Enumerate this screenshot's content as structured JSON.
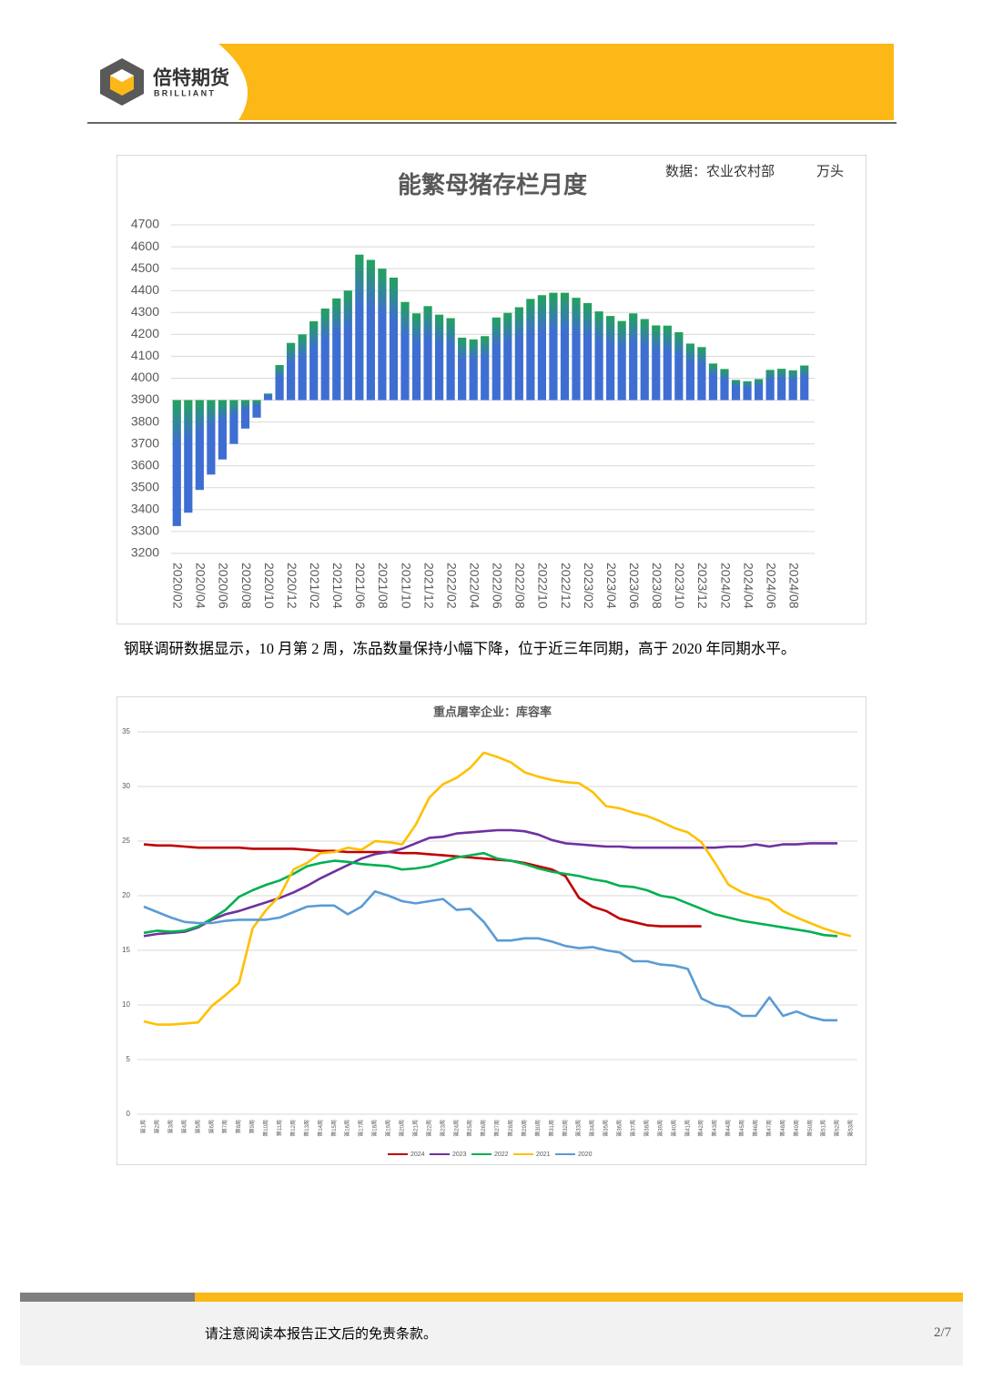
{
  "header": {
    "logo_cn": "倍特期货",
    "logo_en": "BRILLIANT"
  },
  "chart_data": [
    {
      "type": "bar",
      "title": "能繁母猪存栏月度",
      "source": "数据：农业农村部",
      "unit": "万头",
      "categories": [
        "2020/02",
        null,
        "2020/04",
        null,
        "2020/06",
        null,
        "2020/08",
        null,
        "2020/10",
        null,
        "2020/12",
        null,
        "2021/02",
        null,
        "2021/04",
        null,
        "2021/06",
        null,
        "2021/08",
        null,
        "2021/10",
        null,
        "2021/12",
        null,
        "2022/02",
        null,
        "2022/04",
        null,
        "2022/06",
        null,
        "2022/08",
        null,
        "2022/10",
        null,
        "2022/12",
        null,
        "2023/02",
        null,
        "2023/04",
        null,
        "2023/06",
        null,
        "2023/08",
        null,
        "2023/10",
        null,
        "2023/12",
        null,
        "2024/02",
        null,
        "2024/04",
        null,
        "2024/06",
        null,
        "2024/08",
        null
      ],
      "values": [
        3325,
        3386,
        3490,
        3560,
        3629,
        3700,
        3770,
        3820,
        3930,
        4060,
        4161,
        4200,
        4260,
        4318,
        4364,
        4400,
        4564,
        4540,
        4500,
        4459,
        4348,
        4296,
        4329,
        4290,
        4274,
        4185,
        4177,
        4192,
        4277,
        4298,
        4324,
        4362,
        4379,
        4390,
        4390,
        4367,
        4343,
        4305,
        4284,
        4261,
        4296,
        4270,
        4241,
        4240,
        4210,
        4158,
        4142,
        4067,
        4042,
        3992,
        3986,
        3996,
        4038,
        4043,
        4036,
        4058
      ],
      "gradient": [
        "#22a35a",
        "#3f6ed2"
      ],
      "x_axis_at": 3900,
      "ylim": [
        3200,
        4700
      ],
      "yticks": [
        3200,
        3300,
        3400,
        3500,
        3600,
        3700,
        3800,
        3900,
        4000,
        4100,
        4200,
        4300,
        4400,
        4500,
        4600,
        4700
      ],
      "grid": true
    },
    {
      "type": "line",
      "title": "重点屠宰企业：库容率",
      "categories": [
        "第1周",
        "第2周",
        "第3周",
        "第4周",
        "第5周",
        "第6周",
        "第7周",
        "第8周",
        "第9周",
        "第10周",
        "第11周",
        "第12周",
        "第13周",
        "第14周",
        "第15周",
        "第16周",
        "第17周",
        "第18周",
        "第19周",
        "第20周",
        "第21周",
        "第22周",
        "第23周",
        "第24周",
        "第25周",
        "第26周",
        "第27周",
        "第28周",
        "第29周",
        "第30周",
        "第31周",
        "第32周",
        "第33周",
        "第34周",
        "第35周",
        "第36周",
        "第37周",
        "第38周",
        "第39周",
        "第40周",
        "第41周",
        "第42周",
        "第43周",
        "第44周",
        "第45周",
        "第46周",
        "第47周",
        "第48周",
        "第49周",
        "第50周",
        "第51周",
        "第52周",
        "第53周"
      ],
      "series": [
        {
          "name": "2024",
          "color": "#c00000",
          "values": [
            24.7,
            24.6,
            24.6,
            24.5,
            24.4,
            24.4,
            24.4,
            24.4,
            24.3,
            24.3,
            24.3,
            24.3,
            24.2,
            24.1,
            24.1,
            24.0,
            24.0,
            24.0,
            24.0,
            23.9,
            23.9,
            23.8,
            23.7,
            23.6,
            23.5,
            23.4,
            23.3,
            23.2,
            23.0,
            22.7,
            22.4,
            21.8,
            19.8,
            19.0,
            18.6,
            17.9,
            17.6,
            17.3,
            17.2,
            17.2,
            17.2,
            17.2,
            null,
            null,
            null,
            null,
            null,
            null,
            null,
            null,
            null,
            null,
            null
          ]
        },
        {
          "name": "2023",
          "color": "#7030a0",
          "values": [
            16.3,
            16.5,
            16.6,
            16.7,
            17.1,
            17.8,
            18.3,
            18.6,
            19.0,
            19.4,
            19.8,
            20.3,
            20.9,
            21.6,
            22.2,
            22.8,
            23.4,
            23.8,
            24.0,
            24.3,
            24.8,
            25.3,
            25.4,
            25.7,
            25.8,
            25.9,
            26.0,
            26.0,
            25.9,
            25.6,
            25.1,
            24.8,
            24.7,
            24.6,
            24.5,
            24.5,
            24.4,
            24.4,
            24.4,
            24.4,
            24.4,
            24.4,
            24.4,
            24.5,
            24.5,
            24.7,
            24.5,
            24.7,
            24.7,
            24.8,
            24.8,
            24.8,
            null
          ]
        },
        {
          "name": "2022",
          "color": "#00b050",
          "values": [
            16.6,
            16.8,
            16.7,
            16.8,
            17.2,
            17.9,
            18.7,
            19.9,
            20.5,
            21.0,
            21.4,
            22.0,
            22.7,
            23.0,
            23.2,
            23.1,
            22.9,
            22.8,
            22.7,
            22.4,
            22.5,
            22.7,
            23.1,
            23.5,
            23.7,
            23.9,
            23.4,
            23.2,
            22.9,
            22.5,
            22.2,
            22.0,
            21.8,
            21.5,
            21.3,
            20.9,
            20.8,
            20.5,
            20.0,
            19.8,
            19.3,
            18.8,
            18.3,
            18.0,
            17.7,
            17.5,
            17.3,
            17.1,
            16.9,
            16.7,
            16.4,
            16.3,
            null
          ]
        },
        {
          "name": "2021",
          "color": "#ffc000",
          "values": [
            8.5,
            8.2,
            8.2,
            8.3,
            8.4,
            9.9,
            10.9,
            12.0,
            17.0,
            18.7,
            20.0,
            22.4,
            23.0,
            23.9,
            24.0,
            24.4,
            24.2,
            25.0,
            24.9,
            24.7,
            26.5,
            29.0,
            30.2,
            30.8,
            31.7,
            33.1,
            32.7,
            32.2,
            31.3,
            30.9,
            30.6,
            30.4,
            30.3,
            29.5,
            28.2,
            28.0,
            27.6,
            27.3,
            26.8,
            26.2,
            25.8,
            24.9,
            23.0,
            21.0,
            20.3,
            19.9,
            19.6,
            18.6,
            18.0,
            17.5,
            17.0,
            16.6,
            16.3
          ]
        },
        {
          "name": "2020",
          "color": "#5b9bd5",
          "values": [
            19.0,
            18.5,
            18.0,
            17.6,
            17.5,
            17.5,
            17.7,
            17.8,
            17.8,
            17.8,
            18.0,
            18.5,
            19.0,
            19.1,
            19.1,
            18.3,
            19.0,
            20.4,
            20.0,
            19.5,
            19.3,
            19.5,
            19.7,
            18.7,
            18.8,
            17.6,
            15.9,
            15.9,
            16.1,
            16.1,
            15.8,
            15.4,
            15.2,
            15.3,
            15.0,
            14.8,
            14.0,
            14.0,
            13.7,
            13.6,
            13.3,
            10.6,
            10.0,
            9.8,
            9.0,
            9.0,
            10.7,
            9.0,
            9.4,
            8.9,
            8.6,
            8.6,
            null
          ]
        }
      ],
      "ylim": [
        0,
        35
      ],
      "yticks": [
        0,
        5,
        10,
        15,
        20,
        25,
        30,
        35
      ],
      "grid": true,
      "legend": "bottom"
    }
  ],
  "paragraph": "钢联调研数据显示，10 月第 2 周，冻品数量保持小幅下降，位于近三年同期，高于 2020 年同期水平。",
  "footer": {
    "notice": "请注意阅读本报告正文后的免责条款。",
    "page": "2/7"
  }
}
